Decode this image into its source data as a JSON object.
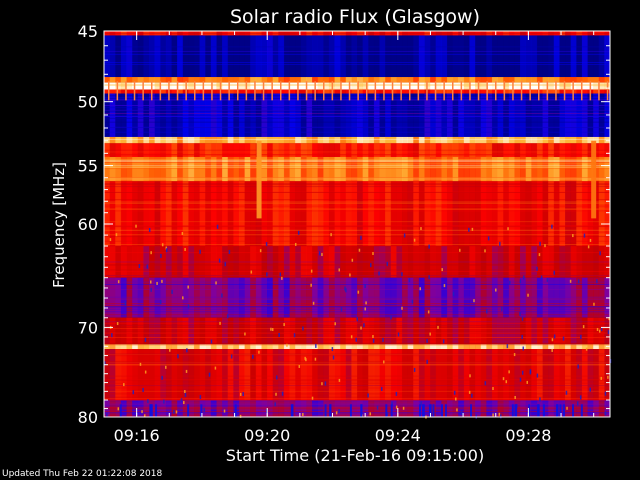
{
  "chart_data": {
    "type": "heatmap",
    "title": "Solar radio Flux (Glasgow)",
    "xlabel": "Start Time (21-Feb-16 09:15:00)",
    "ylabel": "Frequency [MHz]",
    "x_unit": "time",
    "xlim": [
      "09:15:00",
      "09:30:30"
    ],
    "ylim": [
      45,
      80
    ],
    "y_inverted": true,
    "y_scale": "log",
    "x_ticks": [
      "09:16",
      "09:20",
      "09:24",
      "09:28"
    ],
    "y_ticks": [
      45,
      50,
      55,
      60,
      70,
      80
    ],
    "colormap": [
      "#000080",
      "#0000ff",
      "#8000a0",
      "#c00000",
      "#ff0000",
      "#ff6000",
      "#ffc040",
      "#ffffff"
    ],
    "bands": [
      {
        "from": 45.0,
        "to": 45.3,
        "level": 0.55
      },
      {
        "from": 45.3,
        "to": 48.2,
        "level": 0.02
      },
      {
        "from": 48.2,
        "to": 48.6,
        "level": 0.75
      },
      {
        "from": 48.6,
        "to": 49.1,
        "level": 1.0
      },
      {
        "from": 49.1,
        "to": 49.4,
        "level": 0.6
      },
      {
        "from": 49.4,
        "to": 52.7,
        "level": 0.08
      },
      {
        "from": 52.7,
        "to": 53.2,
        "level": 0.85
      },
      {
        "from": 53.2,
        "to": 54.3,
        "level": 0.6
      },
      {
        "from": 54.3,
        "to": 56.3,
        "level": 0.75
      },
      {
        "from": 56.3,
        "to": 62.0,
        "level": 0.55
      },
      {
        "from": 62.0,
        "to": 65.0,
        "level": 0.45
      },
      {
        "from": 65.0,
        "to": 69.0,
        "level": 0.3
      },
      {
        "from": 69.0,
        "to": 71.8,
        "level": 0.45
      },
      {
        "from": 71.8,
        "to": 72.3,
        "level": 0.9
      },
      {
        "from": 72.3,
        "to": 78.0,
        "level": 0.5
      },
      {
        "from": 78.0,
        "to": 80.0,
        "level": 0.3
      }
    ],
    "vertical_features": [
      {
        "time": "09:19:45",
        "from": 53.0,
        "to": 59.5,
        "level": 0.8
      },
      {
        "time": "09:30:00",
        "from": 53.0,
        "to": 59.5,
        "level": 0.75
      }
    ]
  },
  "footer": {
    "updated": "Updated Thu Feb 22 01:22:08 2018"
  }
}
